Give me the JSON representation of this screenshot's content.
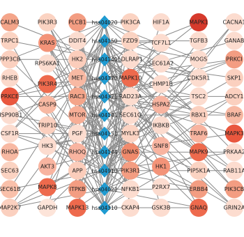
{
  "columns": [
    [
      {
        "label": "CALM3",
        "color": "#f4a58a"
      },
      {
        "label": "TRPC1",
        "color": "#fbd3c2"
      },
      {
        "label": "PPP3CB",
        "color": "#fbd0bf"
      },
      {
        "label": "RHEB",
        "color": "#fcd9cb"
      },
      {
        "label": "PRKCE",
        "color": "#e9573e"
      },
      {
        "label": "HSP90B1",
        "color": "#fcdccf"
      },
      {
        "label": "CSF1R",
        "color": "#fcdccf"
      },
      {
        "label": "RHOA",
        "color": "#f8b9a3"
      },
      {
        "label": "SEC63",
        "color": "#fbd3c2"
      },
      {
        "label": "SEC61B",
        "color": "#f9c0aa"
      },
      {
        "label": "MAP2K7",
        "color": "#fbd0bf"
      }
    ],
    [
      {
        "label": "PIK3R3",
        "color": "#fbd3c2"
      },
      {
        "label": "KRAS",
        "color": "#f39378"
      },
      {
        "label": "RPS6KA1",
        "color": "#fcdccf"
      },
      {
        "label": "PIK3R4",
        "color": "#ee6a4d"
      },
      {
        "label": "CASP9",
        "color": "#f8b9a3"
      },
      {
        "label": "TRIP10",
        "color": "#fbd0bf"
      },
      {
        "label": "HK3",
        "color": "#fcdccf"
      },
      {
        "label": "AKT3",
        "color": "#f8b4a0"
      },
      {
        "label": "MAPK8",
        "color": "#ee6a4d"
      },
      {
        "label": "GAPDH",
        "color": "#fde4d9"
      }
    ],
    [
      {
        "label": "PLCB1",
        "color": "#f39d82"
      },
      {
        "label": "DDIT4",
        "color": "#fcdccf"
      },
      {
        "label": "HK2",
        "color": "#fbcdbb"
      },
      {
        "label": "MET",
        "color": "#f8b9a3"
      },
      {
        "label": "RAC3",
        "color": "#f4a58a"
      },
      {
        "label": "MTOR",
        "color": "#f7ae96"
      },
      {
        "label": "PGF",
        "color": "#fcdccf"
      },
      {
        "label": "RHOQ",
        "color": "#f8b4a0"
      },
      {
        "label": "APP",
        "color": "#fbcdbb"
      },
      {
        "label": "ITPKB",
        "color": "#f39d82"
      },
      {
        "label": "MAPK13",
        "color": "#ee6a4d"
      }
    ],
    [
      {
        "label": "PIK3CA",
        "color": "#fbd3c2"
      },
      {
        "label": "FZD9",
        "color": "#fbd3c2"
      },
      {
        "label": "LDLRAP1",
        "color": "#fcdccf"
      },
      {
        "label": "MAPK10",
        "color": "#ee6a4d"
      },
      {
        "label": "RAD23A",
        "color": "#fcdccf"
      },
      {
        "label": "SEC61G",
        "color": "#fcdccf"
      },
      {
        "label": "MYLK3",
        "color": "#fbd3c2"
      },
      {
        "label": "GNAS",
        "color": "#f08a6c"
      },
      {
        "label": "PIK3R1",
        "color": "#f39d82"
      },
      {
        "label": "NFKB1",
        "color": "#fcdccf"
      },
      {
        "label": "CKAP4",
        "color": "#fcdccf"
      }
    ],
    [
      {
        "label": "HIF1A",
        "color": "#fcdccf"
      },
      {
        "label": "TCF7L1",
        "color": "#fcdccf"
      },
      {
        "label": "SEC61A2",
        "color": "#fcdccf"
      },
      {
        "label": "CHMP1B",
        "color": "#fcdccf"
      },
      {
        "label": "HSPA2",
        "color": "#f8b4a0"
      },
      {
        "label": "IKBKB",
        "color": "#fcdccf"
      },
      {
        "label": "SNF8",
        "color": "#f8b4a0"
      },
      {
        "label": "HK1",
        "color": "#f39378"
      },
      {
        "label": "P2RX7",
        "color": "#fcdccf"
      },
      {
        "label": "GSK3B",
        "color": "#fcdccf"
      }
    ],
    [
      {
        "label": "MAPK1",
        "color": "#d63a2c"
      },
      {
        "label": "TGFB3",
        "color": "#fcdccf"
      },
      {
        "label": "MOGS",
        "color": "#fcdccf"
      },
      {
        "label": "CDK5R1",
        "color": "#fcdccf"
      },
      {
        "label": "TSC2",
        "color": "#fcdccf"
      },
      {
        "label": "RBX1",
        "color": "#fbd0bf"
      },
      {
        "label": "TRAF6",
        "color": "#f8b4a0"
      },
      {
        "label": "MAPK9",
        "color": "#ee6a4d"
      },
      {
        "label": "PIP5K1A",
        "color": "#fbd3c2"
      },
      {
        "label": "ERBB4",
        "color": "#f39d82"
      },
      {
        "label": "GNAQ",
        "color": "#ee6a4d"
      }
    ],
    [
      {
        "label": "CACNA1",
        "color": "#fcdccf"
      },
      {
        "label": "GANAB",
        "color": "#fcdccf"
      },
      {
        "label": "PRKCI",
        "color": "#f39d82"
      },
      {
        "label": "SKP1",
        "color": "#fbd0bf"
      },
      {
        "label": "ADCY1",
        "color": "#fbd0bf"
      },
      {
        "label": "BRAF",
        "color": "#f8b9a3"
      },
      {
        "label": "MAPK3",
        "color": "#e9573e"
      },
      {
        "label": "PRKAA2",
        "color": "#fcdccf"
      },
      {
        "label": "RAB11A",
        "color": "#fcdccf"
      },
      {
        "label": "PIK3CB",
        "color": "#f39d82"
      },
      {
        "label": "GRIN2A",
        "color": "#fcdccf"
      }
    ]
  ],
  "pathways": [
    "hsa04020",
    "hsa04150",
    "hsa04140",
    "hsa04370",
    "hsa04371",
    "hsa04141",
    "hsa04151",
    "hsa04144",
    "hsa04910",
    "hsa04022",
    "hsa04310"
  ]
}
